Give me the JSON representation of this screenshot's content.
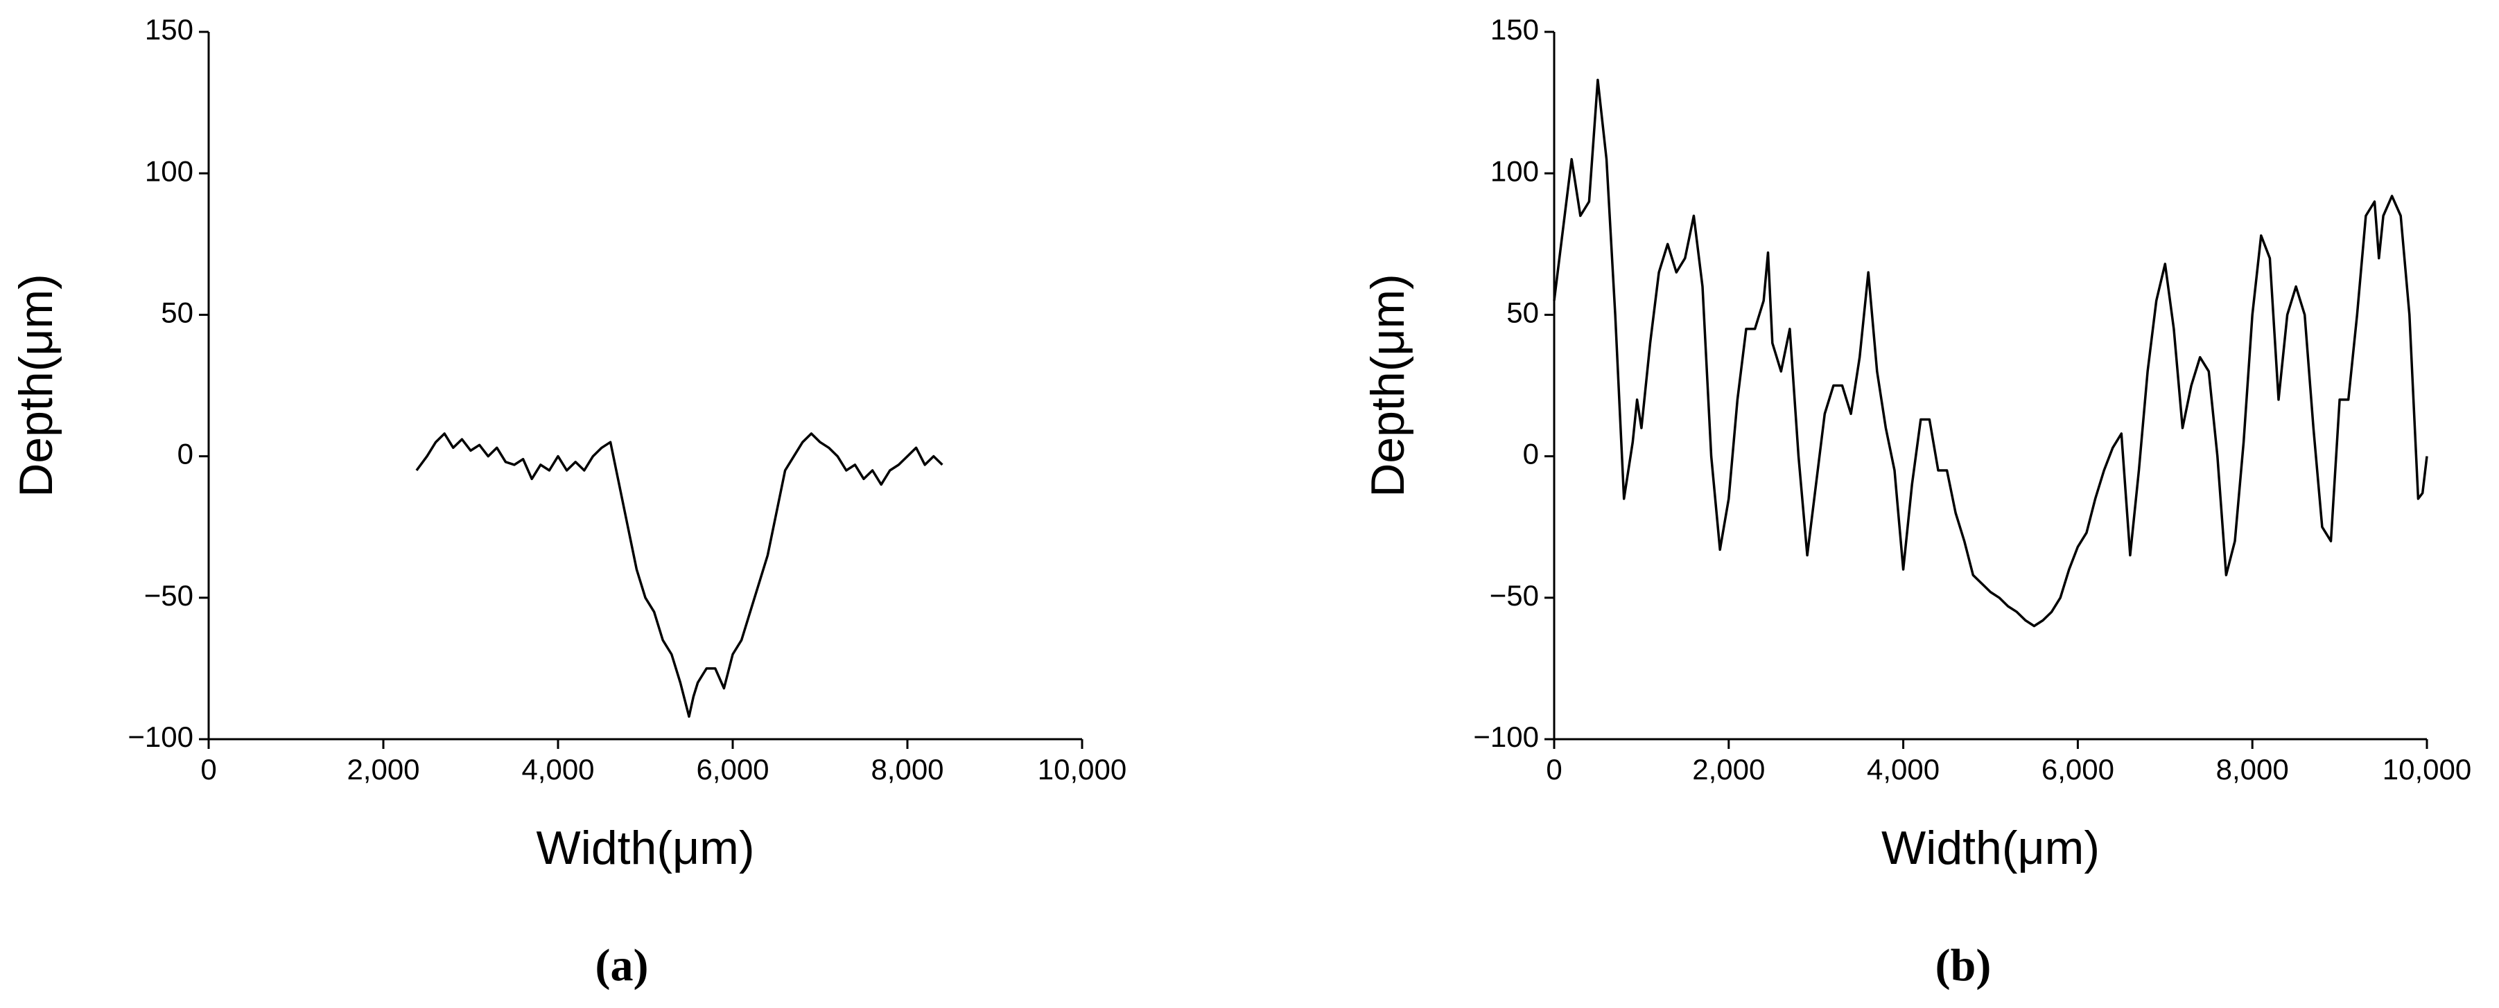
{
  "chart_data": [
    {
      "type": "line",
      "caption": "(a)",
      "x_label": "Width(μm)",
      "y_label": "Depth(μm)",
      "color": "#000000",
      "xlim": [
        0,
        10000
      ],
      "ylim": [
        -100,
        150
      ],
      "xticks": [
        0,
        {
          "value": 2000,
          "label": "2,000"
        },
        {
          "value": 4000,
          "label": "4,000"
        },
        {
          "value": 6000,
          "label": "6,000"
        },
        {
          "value": 8000,
          "label": "8,000"
        },
        {
          "value": 10000,
          "label": "10,000"
        }
      ],
      "yticks": [
        {
          "value": -100,
          "label": "−100"
        },
        {
          "value": -50,
          "label": "−50"
        },
        0,
        50,
        100,
        150
      ],
      "x": [
        2380,
        2500,
        2600,
        2700,
        2800,
        2900,
        3000,
        3100,
        3200,
        3300,
        3400,
        3500,
        3600,
        3700,
        3800,
        3900,
        4000,
        4100,
        4200,
        4300,
        4400,
        4500,
        4600,
        4700,
        4800,
        4900,
        5000,
        5100,
        5200,
        5300,
        5400,
        5500,
        5550,
        5600,
        5700,
        5800,
        5900,
        6000,
        6100,
        6200,
        6300,
        6400,
        6500,
        6600,
        6700,
        6800,
        6900,
        7000,
        7100,
        7200,
        7300,
        7400,
        7500,
        7600,
        7700,
        7800,
        7900,
        8000,
        8100,
        8200,
        8300,
        8400
      ],
      "values": [
        -5,
        0,
        5,
        8,
        3,
        6,
        2,
        4,
        0,
        3,
        -2,
        -3,
        -1,
        -8,
        -3,
        -5,
        0,
        -5,
        -2,
        -5,
        0,
        3,
        5,
        -10,
        -25,
        -40,
        -50,
        -55,
        -65,
        -70,
        -80,
        -92,
        -85,
        -80,
        -75,
        -75,
        -82,
        -70,
        -65,
        -55,
        -45,
        -35,
        -20,
        -5,
        0,
        5,
        8,
        5,
        3,
        0,
        -5,
        -3,
        -8,
        -5,
        -10,
        -5,
        -3,
        0,
        3,
        -3,
        0,
        -3
      ]
    },
    {
      "type": "line",
      "caption": "(b)",
      "x_label": "Width(μm)",
      "y_label": "Depth(μm)",
      "color": "#000000",
      "xlim": [
        0,
        10000
      ],
      "ylim": [
        -100,
        150
      ],
      "xticks": [
        0,
        {
          "value": 2000,
          "label": "2,000"
        },
        {
          "value": 4000,
          "label": "4,000"
        },
        {
          "value": 6000,
          "label": "6,000"
        },
        {
          "value": 8000,
          "label": "8,000"
        },
        {
          "value": 10000,
          "label": "10,000"
        }
      ],
      "yticks": [
        {
          "value": -100,
          "label": "−100"
        },
        {
          "value": -50,
          "label": "−50"
        },
        0,
        50,
        100,
        150
      ],
      "x": [
        0,
        100,
        200,
        300,
        400,
        500,
        600,
        700,
        800,
        900,
        950,
        1000,
        1100,
        1200,
        1300,
        1400,
        1500,
        1600,
        1700,
        1800,
        1900,
        2000,
        2100,
        2200,
        2300,
        2400,
        2450,
        2500,
        2600,
        2700,
        2800,
        2900,
        3000,
        3100,
        3200,
        3300,
        3400,
        3500,
        3600,
        3700,
        3800,
        3900,
        4000,
        4100,
        4200,
        4300,
        4400,
        4500,
        4600,
        4700,
        4800,
        4900,
        5000,
        5100,
        5200,
        5300,
        5400,
        5500,
        5600,
        5700,
        5800,
        5900,
        6000,
        6100,
        6200,
        6300,
        6400,
        6500,
        6600,
        6700,
        6800,
        6900,
        7000,
        7100,
        7200,
        7300,
        7400,
        7500,
        7600,
        7700,
        7800,
        7900,
        8000,
        8100,
        8200,
        8300,
        8400,
        8500,
        8600,
        8700,
        8800,
        8900,
        9000,
        9100,
        9200,
        9300,
        9400,
        9450,
        9500,
        9600,
        9700,
        9800,
        9900,
        9950,
        10000
      ],
      "values": [
        55,
        80,
        105,
        85,
        90,
        133,
        105,
        50,
        -15,
        5,
        20,
        10,
        40,
        65,
        75,
        65,
        70,
        85,
        60,
        0,
        -33,
        -15,
        20,
        45,
        45,
        55,
        72,
        40,
        30,
        45,
        0,
        -35,
        -10,
        15,
        25,
        25,
        15,
        35,
        65,
        30,
        10,
        -5,
        -40,
        -10,
        13,
        13,
        -5,
        -5,
        -20,
        -30,
        -42,
        -45,
        -48,
        -50,
        -53,
        -55,
        -58,
        -60,
        -58,
        -55,
        -50,
        -40,
        -32,
        -27,
        -15,
        -5,
        3,
        8,
        -35,
        -5,
        30,
        55,
        68,
        45,
        10,
        25,
        35,
        30,
        0,
        -42,
        -30,
        5,
        50,
        78,
        70,
        20,
        50,
        60,
        50,
        10,
        -25,
        -30,
        20,
        20,
        50,
        85,
        90,
        70,
        85,
        92,
        85,
        50,
        -15,
        -13,
        0
      ]
    }
  ]
}
